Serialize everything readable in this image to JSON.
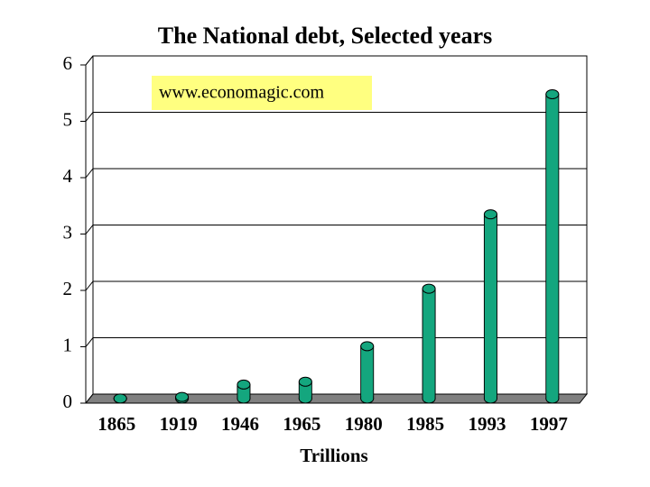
{
  "chart_data": {
    "type": "bar",
    "title": "The National debt, Selected years",
    "x_label": "Trillions",
    "annotation": "www.economagic.com",
    "categories": [
      "1865",
      "1919",
      "1946",
      "1965",
      "1980",
      "1985",
      "1993",
      "1997"
    ],
    "values": [
      0.003,
      0.03,
      0.25,
      0.3,
      0.93,
      1.95,
      3.27,
      5.4
    ],
    "color": "#14a67e",
    "ylim": [
      0,
      6
    ],
    "yticks": [
      0,
      1,
      2,
      3,
      4,
      5,
      6
    ],
    "grid": true
  }
}
